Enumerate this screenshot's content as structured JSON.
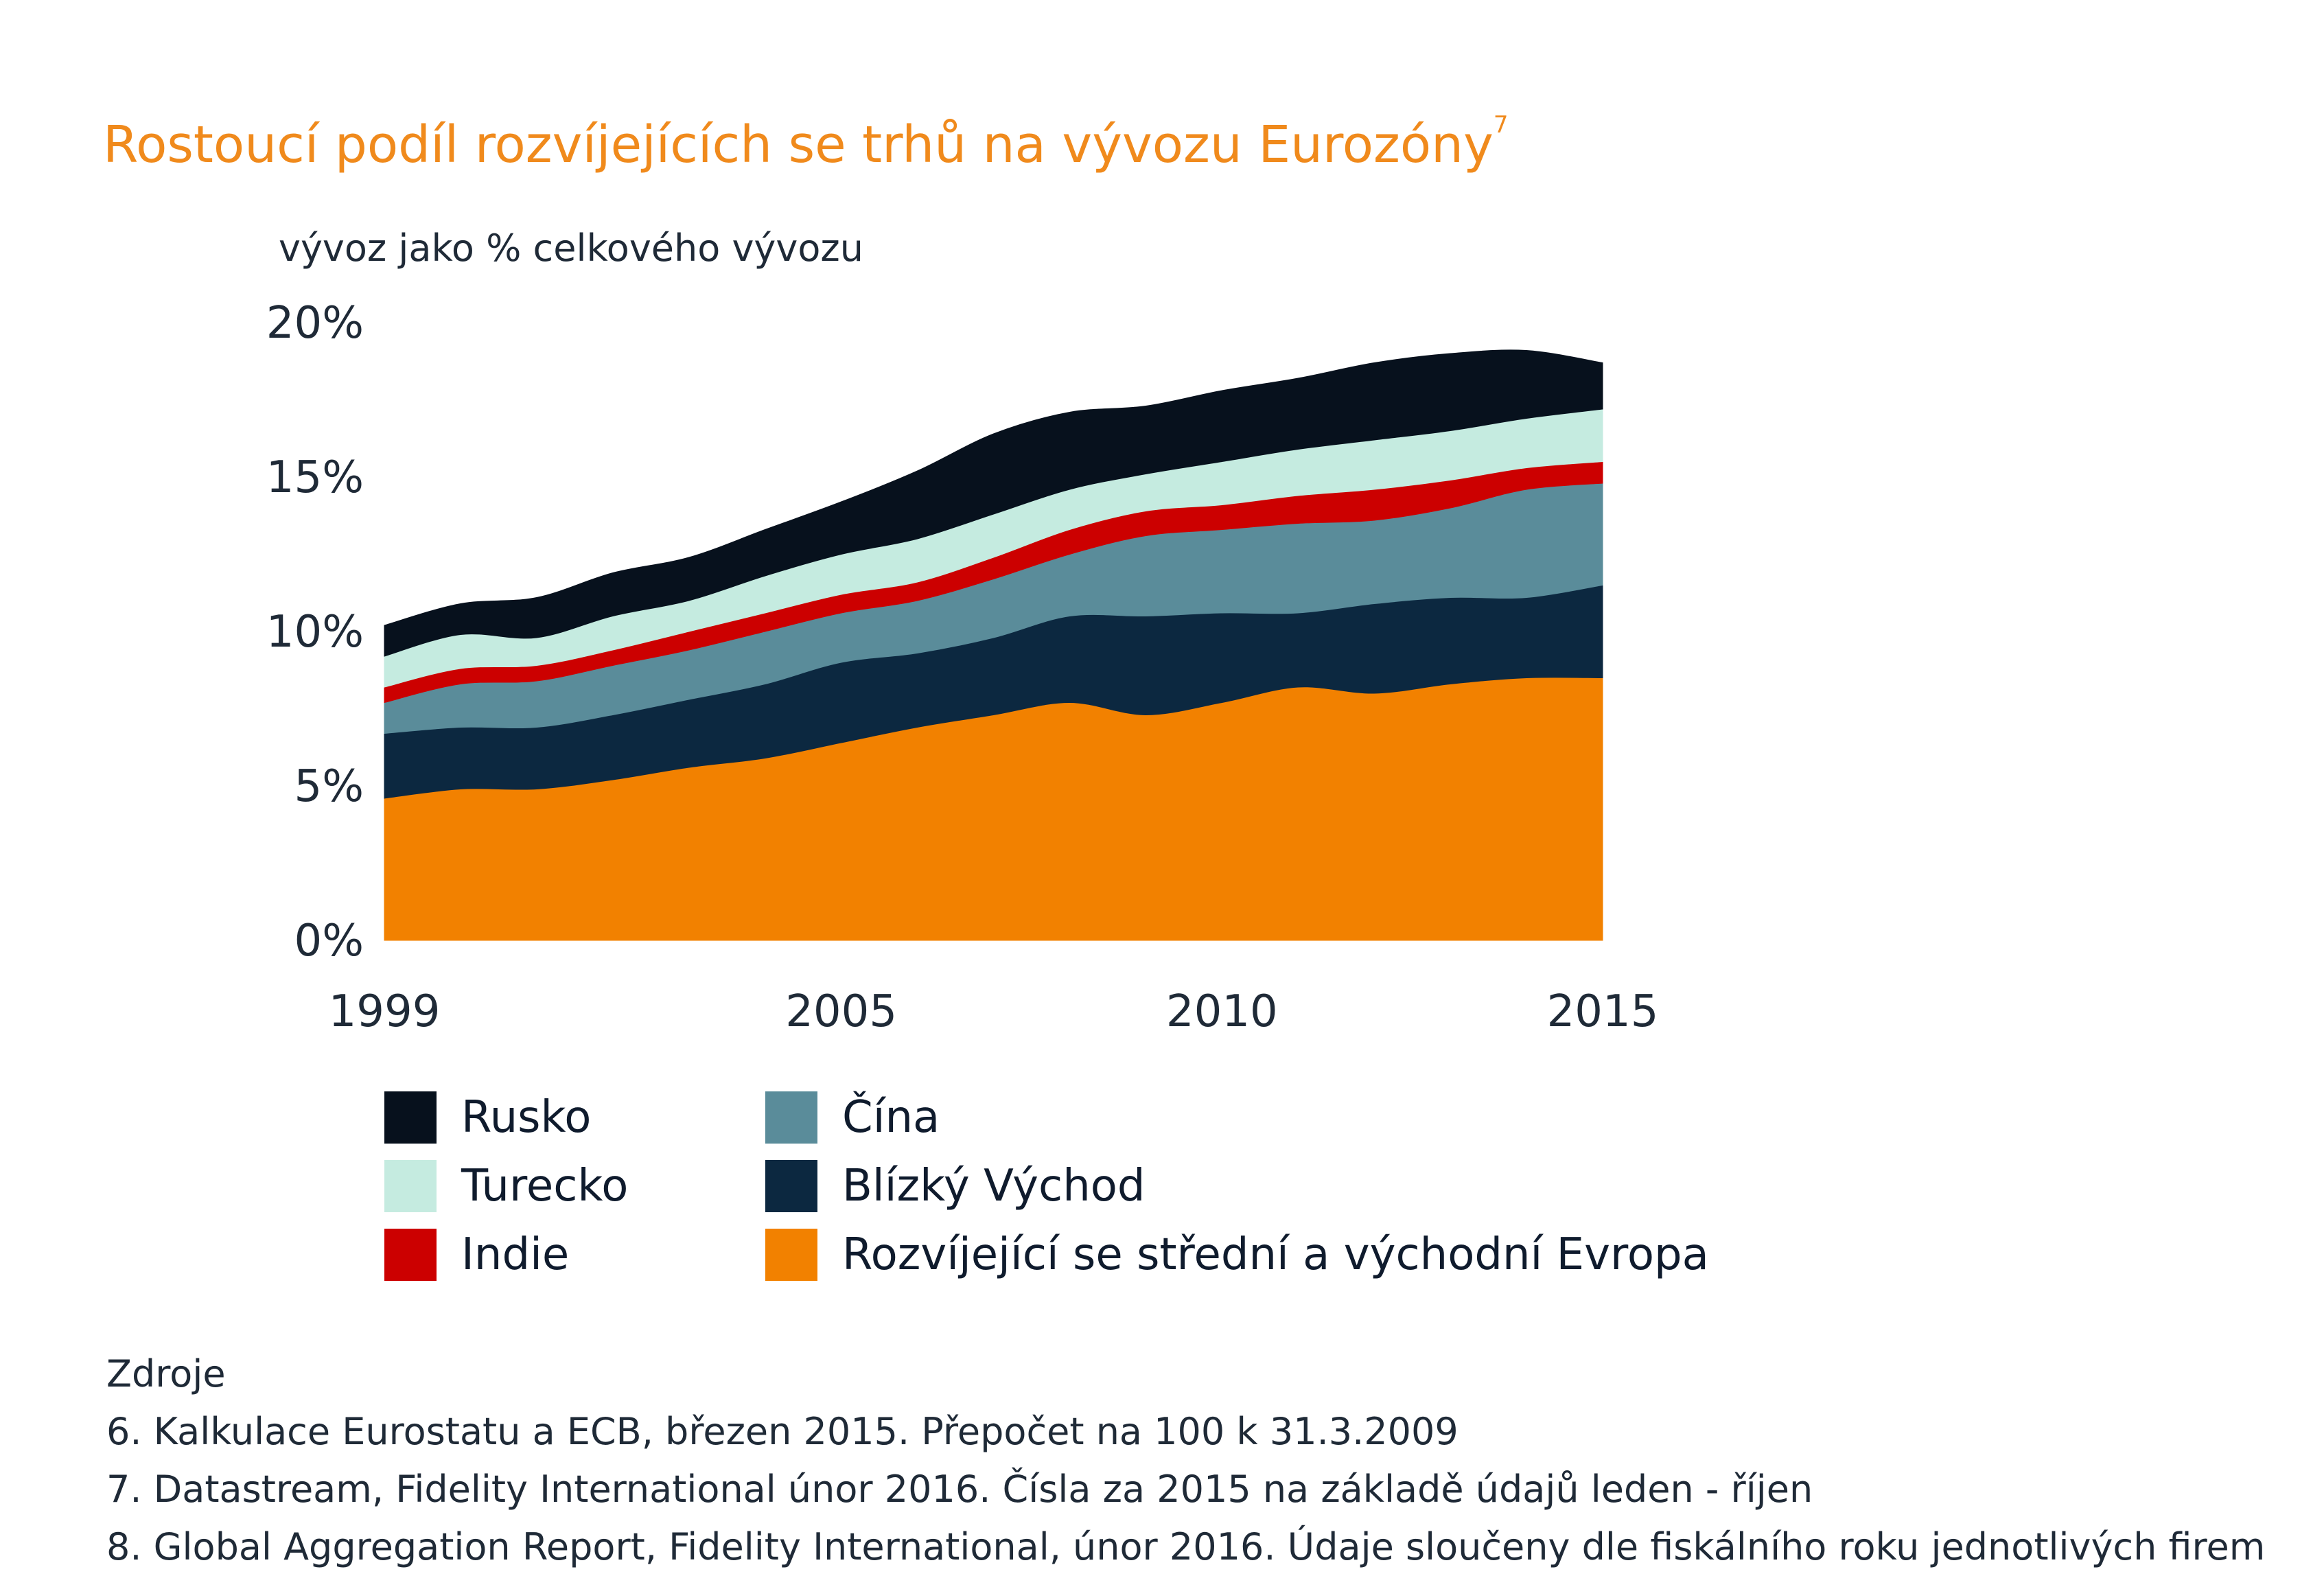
{
  "title": "Rostoucí podíl rozvíjejících se trhů na vývozu Eurozóny",
  "title_sup": "7",
  "colors": {
    "rusko": "#07111d",
    "turecko": "#c5ebe0",
    "indie": "#cc0000",
    "cina": "#5a8c9a",
    "blizky_vychod": "#0c2840",
    "evropa": "#f28100",
    "title": "#f08a1c"
  },
  "legend": [
    {
      "key": "rusko",
      "label": "Rusko"
    },
    {
      "key": "turecko",
      "label": "Turecko"
    },
    {
      "key": "indie",
      "label": "Indie"
    },
    {
      "key": "cina",
      "label": "Čína"
    },
    {
      "key": "blizky_vychod",
      "label": "Blízký Východ"
    },
    {
      "key": "evropa",
      "label": "Rozvíjející se střední a východní Evropa"
    }
  ],
  "chart_data": {
    "type": "area",
    "stacked": true,
    "title": "Rostoucí podíl rozvíjejících se trhů na vývozu Eurozóny",
    "ylabel": "vývoz jako % celkového vývozu",
    "xlabel": "",
    "xlim": [
      1999,
      2015
    ],
    "ylim": [
      0,
      20
    ],
    "x_ticks": [
      "1999",
      "2005",
      "2010",
      "2015"
    ],
    "y_ticks": [
      "0%",
      "5%",
      "10%",
      "15%",
      "20%"
    ],
    "grid": false,
    "legend_position": "bottom",
    "x": [
      1999,
      2000,
      2001,
      2002,
      2003,
      2004,
      2005,
      2006,
      2007,
      2008,
      2009,
      2010,
      2011,
      2012,
      2013,
      2014,
      2015
    ],
    "series": [
      {
        "name": "Rozvíjející se střední a východní Evropa",
        "key": "evropa",
        "values": [
          4.6,
          4.9,
          4.9,
          5.2,
          5.6,
          5.9,
          6.4,
          6.9,
          7.3,
          7.7,
          7.3,
          7.7,
          8.2,
          8.0,
          8.3,
          8.5,
          8.5
        ]
      },
      {
        "name": "Blízký Východ",
        "key": "blizky_vychod",
        "values": [
          2.1,
          2.0,
          2.0,
          2.1,
          2.2,
          2.4,
          2.6,
          2.4,
          2.5,
          2.8,
          3.2,
          2.9,
          2.4,
          2.9,
          2.8,
          2.6,
          3.0
        ]
      },
      {
        "name": "Čína",
        "key": "cina",
        "values": [
          1.0,
          1.4,
          1.5,
          1.6,
          1.6,
          1.7,
          1.6,
          1.7,
          1.9,
          2.0,
          2.6,
          2.7,
          2.9,
          2.7,
          2.9,
          3.5,
          3.3
        ]
      },
      {
        "name": "Indie",
        "key": "indie",
        "values": [
          0.5,
          0.5,
          0.5,
          0.5,
          0.6,
          0.6,
          0.6,
          0.6,
          0.7,
          0.8,
          0.8,
          0.8,
          0.9,
          1.0,
          0.9,
          0.7,
          0.7
        ]
      },
      {
        "name": "Turecko",
        "key": "turecko",
        "values": [
          1.0,
          1.1,
          0.9,
          1.1,
          1.0,
          1.2,
          1.3,
          1.4,
          1.4,
          1.3,
          1.2,
          1.4,
          1.5,
          1.6,
          1.6,
          1.6,
          1.7
        ]
      },
      {
        "name": "Rusko",
        "key": "rusko",
        "values": [
          1.0,
          1.0,
          1.3,
          1.4,
          1.4,
          1.5,
          1.7,
          2.2,
          2.6,
          2.5,
          2.2,
          2.3,
          2.3,
          2.5,
          2.5,
          2.2,
          1.5
        ]
      }
    ]
  },
  "sources": {
    "heading": "Zdroje",
    "lines": [
      "6. Kalkulace Eurostatu a ECB, březen 2015. Přepočet na 100 k 31.3.2009",
      "7. Datastream, Fidelity International únor 2016. Čísla za 2015 na základě údajů leden - říjen",
      "8. Global Aggregation Report, Fidelity International, únor 2016. Údaje sloučeny dle fiskálního roku jednotlivých firem"
    ]
  }
}
